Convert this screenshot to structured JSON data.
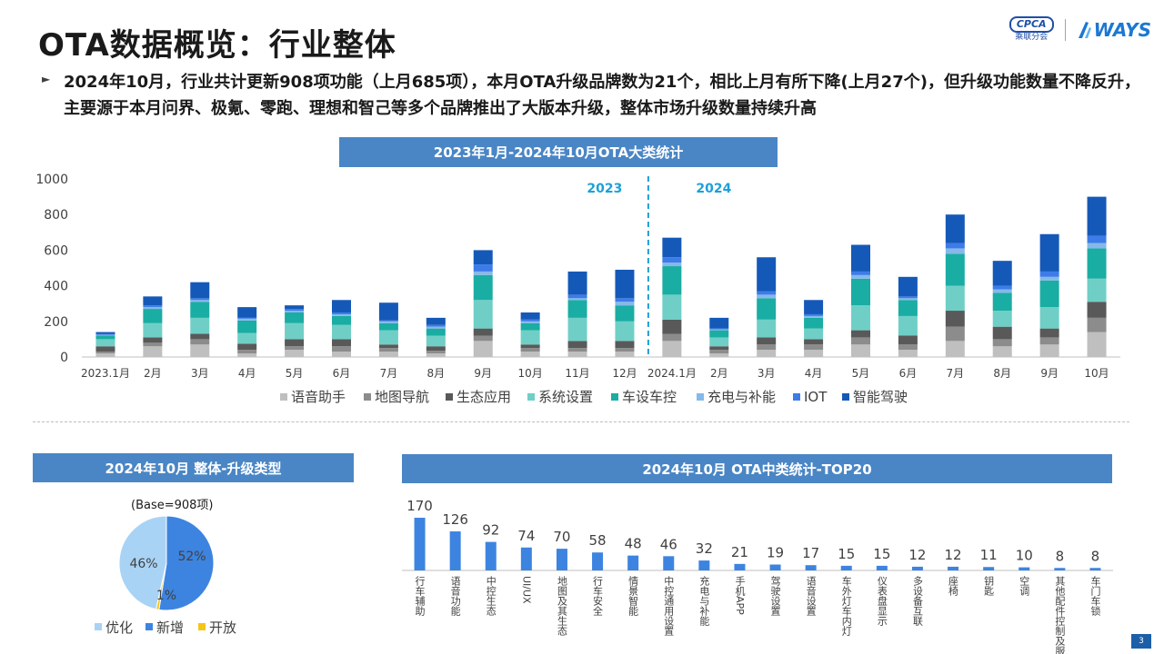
{
  "header": {
    "title": "OTA数据概览：行业整体",
    "logo_cpca": "CPCA",
    "logo_cpca_sub": "乘联分会",
    "logo_ways": "WAYS"
  },
  "summary": {
    "text": "2024年10月，行业共计更新908项功能（上月685项），本月OTA升级品牌数为21个，相比上月有所下降(上月27个)，但升级功能数量不降反升，主要源于本月问界、极氪、零跑、理想和智己等多个品牌推出了大版本升级，整体市场升级数量持续升高"
  },
  "banners": {
    "main": "2023年1月-2024年10月OTA大类统计",
    "pie": "2024年10月 整体-升级类型",
    "top20": "2024年10月 OTA中类统计-TOP20"
  },
  "page_number": "3",
  "colors": {
    "banner": "#4a86c5",
    "year_divider": "#1ea0d8"
  },
  "chart_data": [
    {
      "type": "bar",
      "stacked": true,
      "categories": [
        "2023.1月",
        "2月",
        "3月",
        "4月",
        "5月",
        "6月",
        "7月",
        "8月",
        "9月",
        "10月",
        "11月",
        "12月",
        "2024.1月",
        "2月",
        "3月",
        "4月",
        "5月",
        "6月",
        "7月",
        "8月",
        "9月",
        "10月"
      ],
      "ylim": [
        0,
        1000
      ],
      "yticks": [
        0,
        200,
        400,
        600,
        800,
        1000
      ],
      "year_labels": [
        "2023",
        "2024"
      ],
      "legend_position": "bottom",
      "series": [
        {
          "name": "语音助手",
          "color": "#bfbfbf",
          "values": [
            20,
            60,
            70,
            20,
            40,
            30,
            30,
            20,
            90,
            30,
            30,
            30,
            90,
            20,
            40,
            40,
            70,
            40,
            90,
            60,
            70,
            140
          ]
        },
        {
          "name": "地图导航",
          "color": "#8c8c8c",
          "values": [
            10,
            20,
            30,
            20,
            20,
            30,
            20,
            15,
            30,
            20,
            20,
            20,
            40,
            20,
            30,
            30,
            40,
            30,
            80,
            40,
            40,
            80
          ]
        },
        {
          "name": "生态应用",
          "color": "#595959",
          "values": [
            30,
            30,
            30,
            35,
            40,
            40,
            20,
            25,
            40,
            20,
            40,
            40,
            80,
            20,
            40,
            30,
            40,
            50,
            90,
            70,
            50,
            90
          ]
        },
        {
          "name": "系统设置",
          "color": "#6fcfc7",
          "values": [
            40,
            80,
            90,
            60,
            90,
            80,
            80,
            60,
            160,
            80,
            130,
            110,
            140,
            50,
            100,
            60,
            140,
            110,
            140,
            90,
            120,
            130
          ]
        },
        {
          "name": "车设车控",
          "color": "#1aada3",
          "values": [
            20,
            80,
            90,
            70,
            60,
            50,
            40,
            40,
            140,
            40,
            100,
            90,
            160,
            40,
            120,
            60,
            150,
            90,
            180,
            100,
            150,
            170
          ]
        },
        {
          "name": "充电与补能",
          "color": "#86b9ea",
          "values": [
            5,
            10,
            10,
            10,
            10,
            10,
            10,
            10,
            20,
            10,
            10,
            20,
            20,
            5,
            20,
            10,
            20,
            10,
            30,
            20,
            20,
            30
          ]
        },
        {
          "name": "IOT",
          "color": "#3d7ce8",
          "values": [
            5,
            10,
            10,
            5,
            10,
            10,
            5,
            10,
            40,
            10,
            20,
            20,
            30,
            5,
            20,
            10,
            20,
            10,
            30,
            20,
            30,
            40
          ]
        },
        {
          "name": "智能驾驶",
          "color": "#1559b8",
          "values": [
            10,
            50,
            90,
            60,
            20,
            70,
            100,
            40,
            80,
            40,
            130,
            160,
            110,
            60,
            190,
            80,
            150,
            110,
            160,
            140,
            210,
            220
          ]
        }
      ]
    },
    {
      "type": "pie",
      "base_label": "(Base=908项)",
      "legend_position": "bottom",
      "slices": [
        {
          "name": "优化",
          "value": 46,
          "label": "46%",
          "color": "#a9d3f5"
        },
        {
          "name": "新增",
          "value": 52,
          "label": "52%",
          "color": "#3d84e0"
        },
        {
          "name": "开放",
          "value": 1,
          "label": "1%",
          "color": "#f5c518"
        }
      ]
    },
    {
      "type": "bar",
      "color": "#3d84e0",
      "categories": [
        "行车辅助",
        "语音功能",
        "中控生态",
        "UI/UX",
        "地图及其生态",
        "行车安全",
        "情景智能",
        "中控通用设置",
        "充电与补能",
        "手机APP",
        "驾驶设置",
        "语音设置",
        "车外灯车内灯",
        "仪表盘显示",
        "多设备互联",
        "座椅",
        "钥匙",
        "空调",
        "其他配件控制及服务",
        "车门车锁"
      ],
      "values": [
        170,
        126,
        92,
        74,
        70,
        58,
        48,
        46,
        32,
        21,
        19,
        17,
        15,
        15,
        12,
        12,
        11,
        10,
        8,
        8
      ]
    }
  ]
}
